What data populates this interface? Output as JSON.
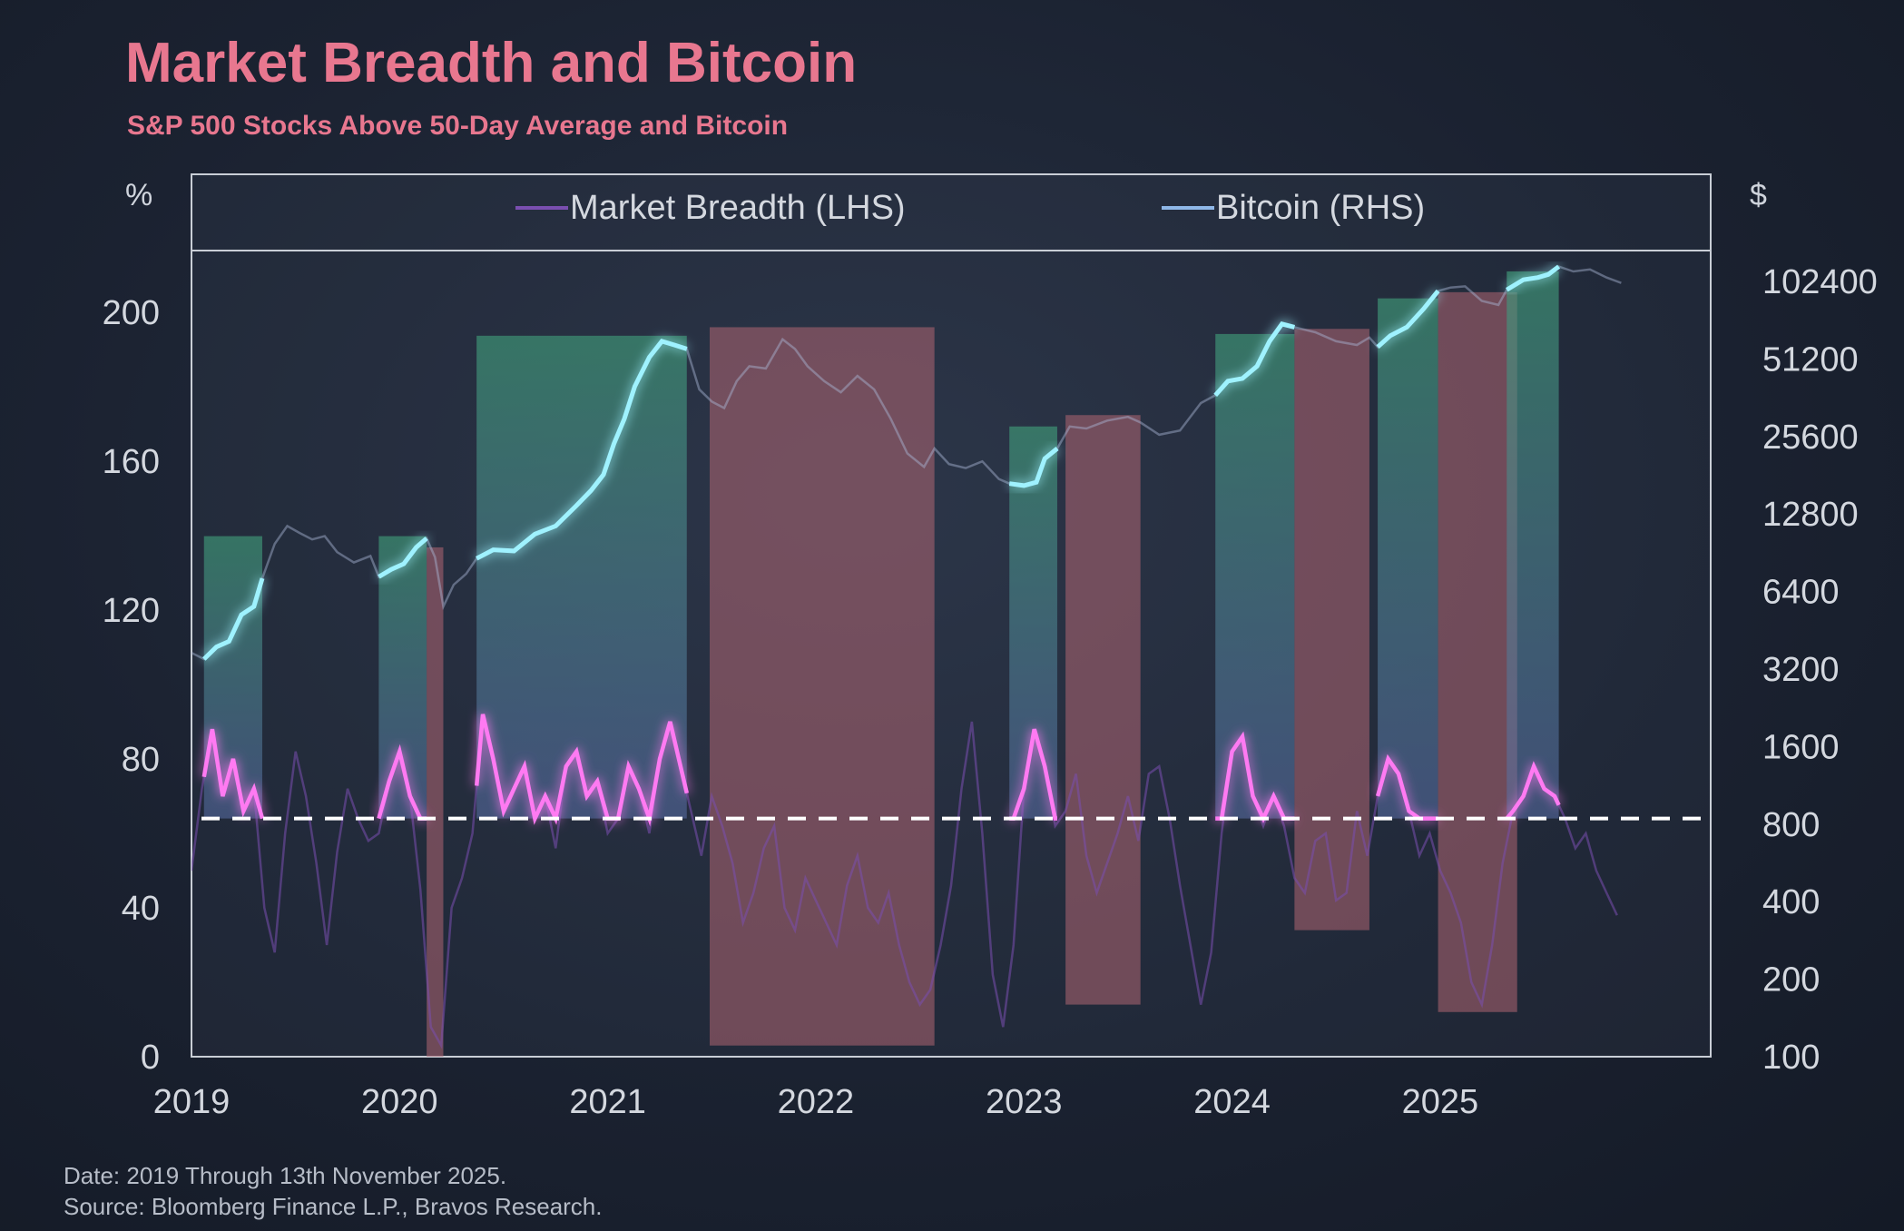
{
  "title": "Market Breadth and Bitcoin",
  "subtitle": "S&P 500 Stocks Above 50-Day Average and Bitcoin",
  "left_unit": "%",
  "right_unit": "$",
  "footer": {
    "date_note": "Date: 2019 Through 13th November 2025.",
    "source_note": "Source: Bloomberg Finance L.P., Bravos Research."
  },
  "colors": {
    "title": "#e8778f",
    "breadth": "#ff7af2",
    "bitcoin": "#9ff2ff",
    "green_band": "#3f9a78",
    "red_band": "#b06673",
    "threshold": "#ffffff"
  },
  "chart_data": {
    "type": "line",
    "legend": [
      "Market Breadth (LHS)",
      "Bitcoin (RHS)"
    ],
    "legend_position": "top",
    "x_range": [
      2019.0,
      2026.3
    ],
    "x_ticks": [
      "2019",
      "2020",
      "2021",
      "2022",
      "2023",
      "2024",
      "2025"
    ],
    "y_left": {
      "range": [
        0,
        200
      ],
      "ticks": [
        "0",
        "40",
        "80",
        "120",
        "160",
        "200"
      ]
    },
    "y_right": {
      "scale": "log2",
      "range": [
        100,
        102400
      ],
      "ticks": [
        "100",
        "200",
        "400",
        "800",
        "1600",
        "3200",
        "6400",
        "12800",
        "25600",
        "51200",
        "102400"
      ]
    },
    "threshold_y": 64,
    "regimes": [
      {
        "type": "green",
        "x0": 2019.06,
        "x1": 2019.34,
        "top_btc": 10500
      },
      {
        "type": "green",
        "x0": 2019.9,
        "x1": 2020.13,
        "top_btc": 10500
      },
      {
        "type": "red",
        "x0": 2020.13,
        "x1": 2020.21,
        "top_btc": 9500,
        "bottom_y": 0
      },
      {
        "type": "green",
        "x0": 2020.37,
        "x1": 2021.38,
        "top_btc": 63000
      },
      {
        "type": "red",
        "x0": 2021.49,
        "x1": 2022.57,
        "top_btc": 68000,
        "bottom_y": 3
      },
      {
        "type": "green",
        "x0": 2022.93,
        "x1": 2023.16,
        "top_btc": 28000
      },
      {
        "type": "red",
        "x0": 2023.2,
        "x1": 2023.56,
        "top_btc": 31000,
        "bottom_y": 14
      },
      {
        "type": "green",
        "x0": 2023.92,
        "x1": 2024.3,
        "top_btc": 64000
      },
      {
        "type": "red",
        "x0": 2024.3,
        "x1": 2024.66,
        "top_btc": 67000,
        "bottom_y": 34
      },
      {
        "type": "green",
        "x0": 2024.7,
        "x1": 2024.99,
        "top_btc": 88000
      },
      {
        "type": "red",
        "x0": 2024.99,
        "x1": 2025.37,
        "top_btc": 93000,
        "bottom_y": 12
      },
      {
        "type": "green",
        "x0": 2025.32,
        "x1": 2025.57,
        "top_btc": 112000
      }
    ],
    "bitcoin": {
      "name": "Bitcoin (RHS)",
      "x": [
        2019.0,
        2019.06,
        2019.12,
        2019.18,
        2019.24,
        2019.3,
        2019.34,
        2019.4,
        2019.46,
        2019.52,
        2019.58,
        2019.64,
        2019.7,
        2019.78,
        2019.86,
        2019.9,
        2019.96,
        2020.02,
        2020.08,
        2020.13,
        2020.17,
        2020.21,
        2020.26,
        2020.32,
        2020.37,
        2020.45,
        2020.55,
        2020.65,
        2020.75,
        2020.85,
        2020.92,
        2020.98,
        2021.03,
        2021.08,
        2021.13,
        2021.2,
        2021.26,
        2021.32,
        2021.38,
        2021.44,
        2021.5,
        2021.56,
        2021.62,
        2021.68,
        2021.76,
        2021.84,
        2021.9,
        2021.96,
        2022.04,
        2022.12,
        2022.2,
        2022.28,
        2022.36,
        2022.44,
        2022.52,
        2022.57,
        2022.64,
        2022.72,
        2022.8,
        2022.88,
        2022.93,
        2023.0,
        2023.06,
        2023.1,
        2023.16,
        2023.22,
        2023.3,
        2023.4,
        2023.5,
        2023.56,
        2023.65,
        2023.75,
        2023.85,
        2023.92,
        2023.98,
        2024.05,
        2024.12,
        2024.18,
        2024.24,
        2024.3,
        2024.4,
        2024.5,
        2024.6,
        2024.66,
        2024.7,
        2024.76,
        2024.84,
        2024.92,
        2024.99,
        2025.05,
        2025.12,
        2025.2,
        2025.28,
        2025.32,
        2025.4,
        2025.47,
        2025.52,
        2025.57,
        2025.64,
        2025.72,
        2025.8,
        2025.87
      ],
      "values": [
        3700,
        3500,
        3900,
        4100,
        5200,
        5600,
        7200,
        9800,
        11500,
        10800,
        10200,
        10500,
        9100,
        8300,
        8800,
        7300,
        7800,
        8200,
        9500,
        10300,
        8700,
        5600,
        6800,
        7500,
        8600,
        9300,
        9200,
        10700,
        11500,
        13800,
        15800,
        18200,
        24000,
        30000,
        40000,
        52000,
        60000,
        58000,
        56000,
        39000,
        35000,
        33000,
        42000,
        48000,
        47000,
        61000,
        56000,
        48000,
        42000,
        38000,
        44000,
        39000,
        30000,
        22000,
        19500,
        23000,
        20000,
        19300,
        20500,
        17500,
        16800,
        16500,
        17000,
        21000,
        23000,
        28000,
        27500,
        29500,
        30500,
        29000,
        26000,
        27000,
        34500,
        37000,
        42000,
        43000,
        48000,
        60000,
        70000,
        68000,
        65000,
        60000,
        58000,
        62000,
        57000,
        63000,
        68000,
        80000,
        94000,
        97000,
        98000,
        86000,
        83000,
        95000,
        104000,
        106000,
        109000,
        117000,
        112000,
        114000,
        106000,
        101000
      ]
    },
    "breadth": {
      "name": "Market Breadth (LHS)",
      "x": [
        2019.0,
        2019.05,
        2019.1,
        2019.15,
        2019.2,
        2019.25,
        2019.3,
        2019.35,
        2019.4,
        2019.45,
        2019.5,
        2019.55,
        2019.6,
        2019.65,
        2019.7,
        2019.75,
        2019.8,
        2019.85,
        2019.9,
        2019.95,
        2020.0,
        2020.05,
        2020.1,
        2020.15,
        2020.2,
        2020.25,
        2020.3,
        2020.35,
        2020.4,
        2020.45,
        2020.5,
        2020.55,
        2020.6,
        2020.65,
        2020.7,
        2020.75,
        2020.8,
        2020.85,
        2020.9,
        2020.95,
        2021.0,
        2021.05,
        2021.1,
        2021.15,
        2021.2,
        2021.25,
        2021.3,
        2021.35,
        2021.4,
        2021.45,
        2021.5,
        2021.55,
        2021.6,
        2021.65,
        2021.7,
        2021.75,
        2021.8,
        2021.85,
        2021.9,
        2021.95,
        2022.0,
        2022.05,
        2022.1,
        2022.15,
        2022.2,
        2022.25,
        2022.3,
        2022.35,
        2022.4,
        2022.45,
        2022.5,
        2022.55,
        2022.6,
        2022.65,
        2022.7,
        2022.75,
        2022.8,
        2022.85,
        2022.9,
        2022.95,
        2023.0,
        2023.05,
        2023.1,
        2023.15,
        2023.2,
        2023.25,
        2023.3,
        2023.35,
        2023.4,
        2023.45,
        2023.5,
        2023.55,
        2023.6,
        2023.65,
        2023.7,
        2023.75,
        2023.8,
        2023.85,
        2023.9,
        2023.95,
        2024.0,
        2024.05,
        2024.1,
        2024.15,
        2024.2,
        2024.25,
        2024.3,
        2024.35,
        2024.4,
        2024.45,
        2024.5,
        2024.55,
        2024.6,
        2024.65,
        2024.7,
        2024.75,
        2024.8,
        2024.85,
        2024.9,
        2024.95,
        2025.0,
        2025.05,
        2025.1,
        2025.15,
        2025.2,
        2025.25,
        2025.3,
        2025.35,
        2025.4,
        2025.45,
        2025.5,
        2025.55,
        2025.6,
        2025.65,
        2025.7,
        2025.75,
        2025.8,
        2025.85
      ],
      "values": [
        50,
        72,
        88,
        70,
        80,
        66,
        72,
        40,
        28,
        60,
        82,
        70,
        52,
        30,
        55,
        72,
        64,
        58,
        60,
        74,
        82,
        70,
        45,
        8,
        3,
        40,
        48,
        60,
        92,
        80,
        66,
        72,
        78,
        64,
        70,
        56,
        78,
        82,
        70,
        74,
        60,
        64,
        78,
        72,
        60,
        80,
        90,
        78,
        66,
        54,
        70,
        62,
        52,
        36,
        44,
        56,
        62,
        40,
        34,
        48,
        42,
        36,
        30,
        46,
        54,
        40,
        36,
        44,
        30,
        20,
        14,
        18,
        30,
        46,
        72,
        90,
        60,
        22,
        8,
        30,
        72,
        88,
        78,
        62,
        66,
        76,
        54,
        44,
        52,
        60,
        70,
        58,
        76,
        78,
        64,
        46,
        30,
        14,
        28,
        60,
        82,
        86,
        70,
        62,
        70,
        62,
        48,
        44,
        58,
        60,
        42,
        44,
        66,
        54,
        70,
        80,
        76,
        66,
        54,
        60,
        50,
        44,
        36,
        20,
        14,
        30,
        52,
        66,
        70,
        78,
        72,
        70,
        64,
        56,
        60,
        50,
        44,
        38
      ]
    }
  }
}
